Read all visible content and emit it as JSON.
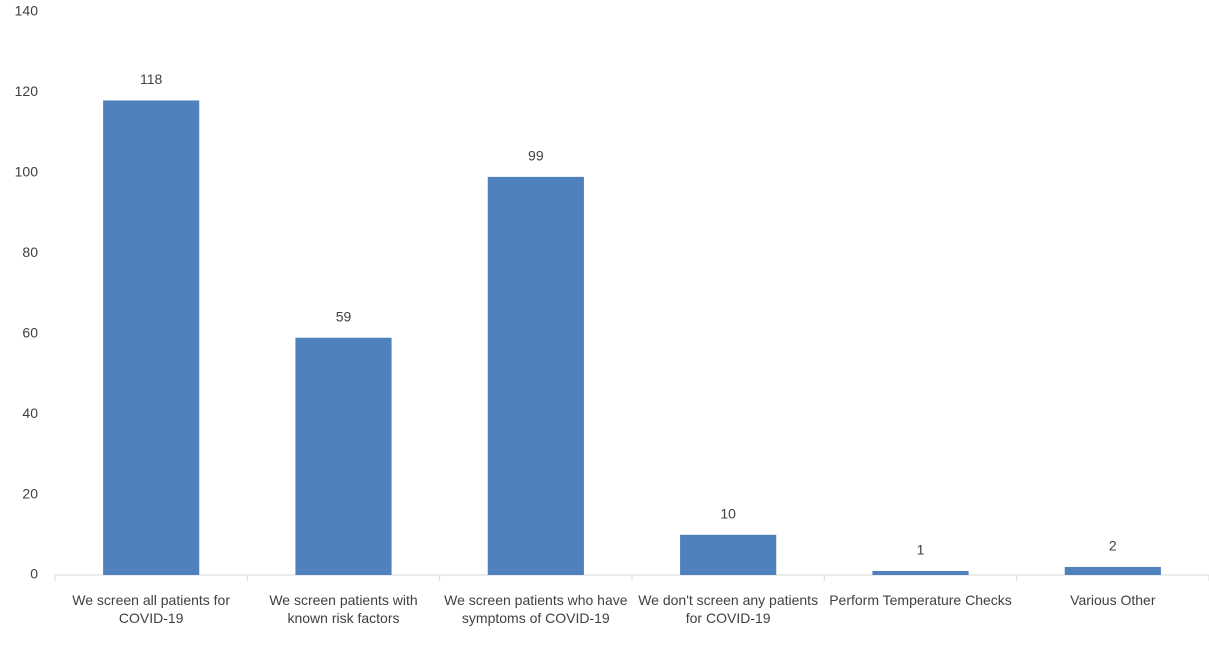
{
  "chart_data": {
    "type": "bar",
    "categories": [
      "We screen all patients for COVID-19",
      "We screen patients with known risk factors",
      "We screen patients who have symptoms of COVID-19",
      "We don't screen any patients for COVID-19",
      "Perform Temperature Checks",
      "Various Other"
    ],
    "values": [
      118,
      59,
      99,
      10,
      1,
      2
    ],
    "color": "#4f81bd",
    "ylim": [
      0,
      140
    ],
    "yticks": [
      0,
      20,
      40,
      60,
      80,
      100,
      120,
      140
    ],
    "grid": false
  }
}
